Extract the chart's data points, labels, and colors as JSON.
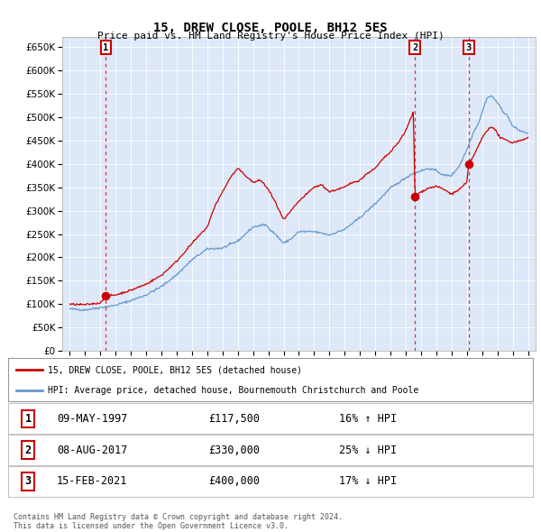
{
  "title": "15, DREW CLOSE, POOLE, BH12 5ES",
  "subtitle": "Price paid vs. HM Land Registry's House Price Index (HPI)",
  "ytick_values": [
    0,
    50000,
    100000,
    150000,
    200000,
    250000,
    300000,
    350000,
    400000,
    450000,
    500000,
    550000,
    600000,
    650000
  ],
  "ylim": [
    0,
    670000
  ],
  "xlim_min": 1994.5,
  "xlim_max": 2025.5,
  "plot_bg": "#dde8f8",
  "legend_line1": "15, DREW CLOSE, POOLE, BH12 5ES (detached house)",
  "legend_line2": "HPI: Average price, detached house, Bournemouth Christchurch and Poole",
  "transactions": [
    {
      "num": 1,
      "date": "09-MAY-1997",
      "price": "£117,500",
      "note": "16% ↑ HPI",
      "x_year": 1997.36,
      "y_val": 117500
    },
    {
      "num": 2,
      "date": "08-AUG-2017",
      "price": "£330,000",
      "note": "25% ↓ HPI",
      "x_year": 2017.6,
      "y_val": 330000
    },
    {
      "num": 3,
      "date": "15-FEB-2021",
      "price": "£400,000",
      "note": "17% ↓ HPI",
      "x_year": 2021.12,
      "y_val": 400000
    }
  ],
  "footer": "Contains HM Land Registry data © Crown copyright and database right 2024.\nThis data is licensed under the Open Government Licence v3.0.",
  "red_line_color": "#cc0000",
  "blue_line_color": "#6699cc",
  "dashed_line_color": "#dd3333",
  "grid_color": "#c8d8ee",
  "hpi_anchors": [
    [
      1995.0,
      90000
    ],
    [
      1996.0,
      88000
    ],
    [
      1997.0,
      93000
    ],
    [
      1998.0,
      98000
    ],
    [
      1999.0,
      108000
    ],
    [
      2000.0,
      120000
    ],
    [
      2001.0,
      138000
    ],
    [
      2002.0,
      163000
    ],
    [
      2003.0,
      195000
    ],
    [
      2004.0,
      218000
    ],
    [
      2005.0,
      220000
    ],
    [
      2006.0,
      235000
    ],
    [
      2007.0,
      265000
    ],
    [
      2007.8,
      270000
    ],
    [
      2008.5,
      248000
    ],
    [
      2009.0,
      230000
    ],
    [
      2009.5,
      240000
    ],
    [
      2010.0,
      255000
    ],
    [
      2011.0,
      255000
    ],
    [
      2012.0,
      248000
    ],
    [
      2013.0,
      260000
    ],
    [
      2014.0,
      285000
    ],
    [
      2015.0,
      315000
    ],
    [
      2016.0,
      348000
    ],
    [
      2017.0,
      370000
    ],
    [
      2017.5,
      380000
    ],
    [
      2018.0,
      385000
    ],
    [
      2018.5,
      390000
    ],
    [
      2019.0,
      385000
    ],
    [
      2019.5,
      375000
    ],
    [
      2020.0,
      375000
    ],
    [
      2020.5,
      395000
    ],
    [
      2021.0,
      430000
    ],
    [
      2021.4,
      465000
    ],
    [
      2021.8,
      490000
    ],
    [
      2022.0,
      510000
    ],
    [
      2022.3,
      540000
    ],
    [
      2022.6,
      545000
    ],
    [
      2022.9,
      535000
    ],
    [
      2023.3,
      515000
    ],
    [
      2023.7,
      500000
    ],
    [
      2024.0,
      480000
    ],
    [
      2024.5,
      470000
    ],
    [
      2025.0,
      465000
    ]
  ],
  "prop_anchors": [
    [
      1995.0,
      100000
    ],
    [
      1996.0,
      99000
    ],
    [
      1997.0,
      103000
    ],
    [
      1997.36,
      117500
    ],
    [
      1998.0,
      120000
    ],
    [
      1999.0,
      130000
    ],
    [
      2000.0,
      143000
    ],
    [
      2001.0,
      162000
    ],
    [
      2002.0,
      192000
    ],
    [
      2003.0,
      230000
    ],
    [
      2004.0,
      265000
    ],
    [
      2004.5,
      310000
    ],
    [
      2005.0,
      340000
    ],
    [
      2005.5,
      370000
    ],
    [
      2006.0,
      390000
    ],
    [
      2006.5,
      375000
    ],
    [
      2007.0,
      360000
    ],
    [
      2007.5,
      365000
    ],
    [
      2008.0,
      345000
    ],
    [
      2008.5,
      315000
    ],
    [
      2009.0,
      280000
    ],
    [
      2009.5,
      300000
    ],
    [
      2010.0,
      320000
    ],
    [
      2010.5,
      335000
    ],
    [
      2011.0,
      350000
    ],
    [
      2011.5,
      355000
    ],
    [
      2012.0,
      340000
    ],
    [
      2012.5,
      345000
    ],
    [
      2013.0,
      350000
    ],
    [
      2013.5,
      360000
    ],
    [
      2014.0,
      365000
    ],
    [
      2014.5,
      380000
    ],
    [
      2015.0,
      390000
    ],
    [
      2015.5,
      410000
    ],
    [
      2016.0,
      425000
    ],
    [
      2016.5,
      445000
    ],
    [
      2017.0,
      470000
    ],
    [
      2017.3,
      495000
    ],
    [
      2017.5,
      510000
    ],
    [
      2017.6,
      330000
    ],
    [
      2018.0,
      340000
    ],
    [
      2018.5,
      348000
    ],
    [
      2019.0,
      352000
    ],
    [
      2019.5,
      345000
    ],
    [
      2020.0,
      335000
    ],
    [
      2020.5,
      345000
    ],
    [
      2021.0,
      360000
    ],
    [
      2021.12,
      400000
    ],
    [
      2021.5,
      420000
    ],
    [
      2022.0,
      455000
    ],
    [
      2022.3,
      470000
    ],
    [
      2022.6,
      480000
    ],
    [
      2022.9,
      470000
    ],
    [
      2023.2,
      455000
    ],
    [
      2023.6,
      450000
    ],
    [
      2024.0,
      445000
    ],
    [
      2024.5,
      450000
    ],
    [
      2025.0,
      455000
    ]
  ]
}
